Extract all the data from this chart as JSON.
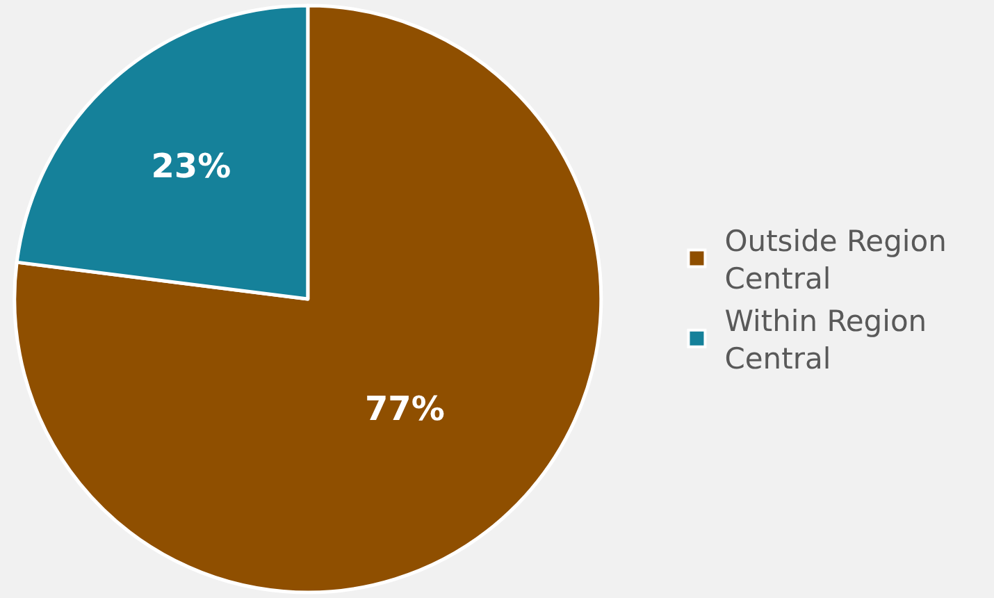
{
  "chart_data": {
    "type": "pie",
    "categories": [
      "Outside Region Central",
      "Within Region Central"
    ],
    "values": [
      77,
      23
    ],
    "colors": [
      "#8f4f00",
      "#15819a"
    ],
    "value_labels": [
      "77%",
      "23%"
    ],
    "legend": "right"
  }
}
